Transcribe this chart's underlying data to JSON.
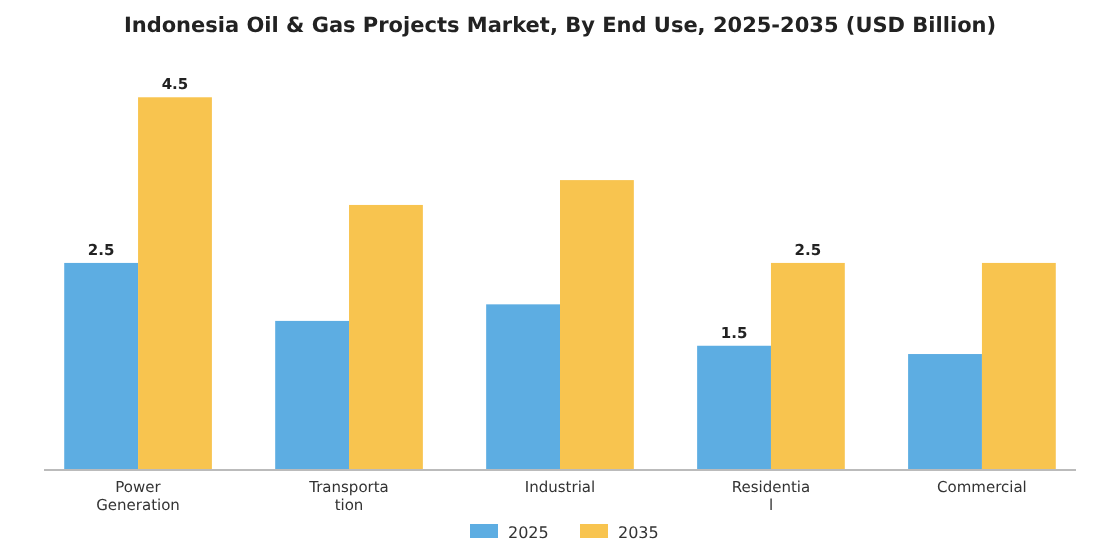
{
  "chart_data": {
    "type": "bar",
    "title": "Indonesia Oil & Gas Projects Market, By End Use, 2025-2035 (USD Billion)",
    "categories": [
      "Power Generation",
      "Transportation",
      "Industrial",
      "Residential",
      "Commercial"
    ],
    "series": [
      {
        "name": "2025",
        "color": "#5dade2",
        "values": [
          2.5,
          1.8,
          2.0,
          1.5,
          1.4
        ],
        "value_labels": [
          "2.5",
          null,
          null,
          "1.5",
          null
        ]
      },
      {
        "name": "2035",
        "color": "#f8c44f",
        "values": [
          4.5,
          3.2,
          3.5,
          2.5,
          2.5
        ],
        "value_labels": [
          "4.5",
          null,
          null,
          "2.5",
          null
        ]
      }
    ],
    "legend": "bottom",
    "grid": false
  }
}
